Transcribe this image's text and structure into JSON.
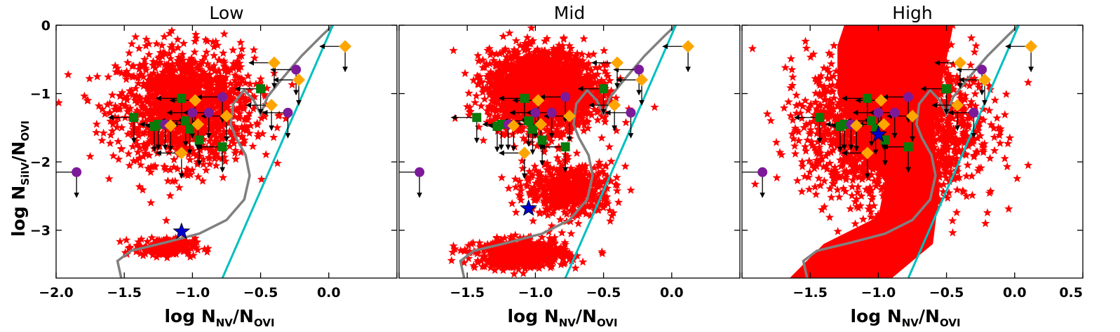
{
  "chart_data": {
    "type": "scatter",
    "xlim": [
      -2.0,
      0.5
    ],
    "ylim": [
      -3.7,
      0.0
    ],
    "x_ticks": [
      -2.0,
      -1.5,
      -1.0,
      -0.5,
      0.0,
      0.5
    ],
    "y_ticks": [
      0,
      -1,
      -2,
      -3
    ],
    "y_tick_labels": [
      "0",
      "−1",
      "−2",
      "−3"
    ],
    "x_tick_labels_by_panel": [
      [
        "−2.0",
        "−1.5",
        "−1.0",
        "−0.5",
        "0.0"
      ],
      [
        "−1.5",
        "−1.0",
        "−0.5",
        "0.0"
      ],
      [
        "−1.5",
        "−1.0",
        "−0.5",
        "0.0",
        "0.5"
      ]
    ],
    "ylabel": {
      "main": "log N",
      "num_sub": "SiIV",
      "sep": "/N",
      "den_sub": "OVI"
    },
    "xlabel": {
      "main": "log N",
      "num_sub": "NV",
      "sep": "/N",
      "den_sub": "OVI"
    },
    "colors": {
      "model_stars": "#ff0000",
      "observed_star": "#0000cc",
      "green_squares": "#0a7a0a",
      "purple_circles": "#7d1a9a",
      "orange_diamonds": "#ffa500",
      "gray_curve": "#808080",
      "cyan_line": "#00bfbf"
    },
    "panels": [
      {
        "title": "Low",
        "model_region": [
          {
            "type": "scatter",
            "center": [
              -1.05,
              -1.2
            ],
            "spread": [
              0.45,
              0.75
            ],
            "count": 1400
          },
          {
            "type": "scatter",
            "center": [
              -1.2,
              -3.25
            ],
            "spread": [
              0.2,
              0.12
            ],
            "count": 220
          }
        ],
        "observed_star": [
          -1.08,
          -3.02
        ]
      },
      {
        "title": "Mid",
        "model_region": [
          {
            "type": "scatter",
            "center": [
              -0.95,
              -0.95
            ],
            "spread": [
              0.35,
              0.5
            ],
            "count": 2600
          },
          {
            "type": "scatter",
            "center": [
              -0.75,
              -2.4
            ],
            "spread": [
              0.3,
              0.35
            ],
            "count": 500
          },
          {
            "type": "scatter",
            "center": [
              -1.1,
              -3.35
            ],
            "spread": [
              0.3,
              0.18
            ],
            "count": 700
          }
        ],
        "observed_star": [
          -1.05,
          -2.68
        ]
      },
      {
        "title": "High",
        "model_region": [
          {
            "type": "band",
            "polygon": [
              [
                -1.25,
                0.0
              ],
              [
                -0.45,
                0.0
              ],
              [
                -0.6,
                -1.5
              ],
              [
                -0.55,
                -2.4
              ],
              [
                -0.6,
                -3.2
              ],
              [
                -0.9,
                -3.7
              ],
              [
                -1.65,
                -3.7
              ],
              [
                -1.4,
                -3.2
              ],
              [
                -1.0,
                -2.8
              ],
              [
                -0.95,
                -2.3
              ],
              [
                -1.15,
                -1.7
              ],
              [
                -1.3,
                -1.0
              ],
              [
                -1.3,
                -0.3
              ]
            ]
          },
          {
            "type": "scatter",
            "center": [
              -0.9,
              -1.5
            ],
            "spread": [
              0.55,
              1.0
            ],
            "count": 2200
          }
        ],
        "observed_star": [
          -1.0,
          -1.6
        ]
      }
    ],
    "gray_curve": [
      [
        -1.52,
        -3.72
      ],
      [
        -1.55,
        -3.45
      ],
      [
        -1.45,
        -3.3
      ],
      [
        -1.2,
        -3.18
      ],
      [
        -0.95,
        -3.05
      ],
      [
        -0.75,
        -2.85
      ],
      [
        -0.62,
        -2.55
      ],
      [
        -0.58,
        -2.2
      ],
      [
        -0.61,
        -1.9
      ],
      [
        -0.68,
        -1.65
      ],
      [
        -0.72,
        -1.45
      ],
      [
        -0.7,
        -1.15
      ],
      [
        -0.62,
        -0.95
      ],
      [
        -0.55,
        -1.1
      ],
      [
        -0.5,
        -1.3
      ],
      [
        -0.45,
        -1.05
      ],
      [
        -0.35,
        -0.8
      ],
      [
        -0.2,
        -0.45
      ],
      [
        -0.05,
        -0.15
      ],
      [
        0.03,
        0.0
      ]
    ],
    "cyan_line": [
      [
        -0.78,
        -3.7
      ],
      [
        0.03,
        0.0
      ]
    ],
    "green_squares": [
      {
        "x": -1.43,
        "y": -1.35,
        "xlim": true,
        "ylim": true
      },
      {
        "x": -1.28,
        "y": -1.48,
        "xlim": false,
        "ylim": true
      },
      {
        "x": -1.25,
        "y": -1.45,
        "xlim": false,
        "ylim": true
      },
      {
        "x": -1.08,
        "y": -1.07,
        "xlim": true,
        "ylim": true
      },
      {
        "x": -1.05,
        "y": -1.4,
        "xlim": true,
        "ylim": true
      },
      {
        "x": -1.02,
        "y": -1.52,
        "xlim": false,
        "ylim": true
      },
      {
        "x": -0.95,
        "y": -1.68,
        "xlim": false,
        "ylim": true
      },
      {
        "x": -0.78,
        "y": -1.78,
        "xlim": true,
        "ylim": true
      },
      {
        "x": -0.5,
        "y": -0.93,
        "xlim": true,
        "ylim": true
      }
    ],
    "purple_circles": [
      {
        "x": -1.85,
        "y": -2.15,
        "xlim": true,
        "ylim": true
      },
      {
        "x": -1.2,
        "y": -1.45,
        "xlim": true,
        "ylim": true
      },
      {
        "x": -1.0,
        "y": -1.28,
        "xlim": true,
        "ylim": true
      },
      {
        "x": -0.88,
        "y": -1.28,
        "xlim": true,
        "ylim": true
      },
      {
        "x": -0.78,
        "y": -1.05,
        "xlim": true,
        "ylim": true
      },
      {
        "x": -0.3,
        "y": -1.28,
        "xlim": true,
        "ylim": true
      },
      {
        "x": -0.24,
        "y": -0.65,
        "xlim": true,
        "ylim": true
      }
    ],
    "orange_diamonds": [
      {
        "x": -1.16,
        "y": -1.47,
        "xlim": true,
        "ylim": true
      },
      {
        "x": -1.08,
        "y": -1.87,
        "xlim": true,
        "ylim": true
      },
      {
        "x": -0.98,
        "y": -1.1,
        "xlim": true,
        "ylim": true
      },
      {
        "x": -0.96,
        "y": -1.45,
        "xlim": true,
        "ylim": true
      },
      {
        "x": -0.75,
        "y": -1.33,
        "xlim": true,
        "ylim": true
      },
      {
        "x": -0.4,
        "y": -0.55,
        "xlim": true,
        "ylim": true
      },
      {
        "x": -0.42,
        "y": -1.17,
        "xlim": true,
        "ylim": true
      },
      {
        "x": -0.22,
        "y": -0.8,
        "xlim": true,
        "ylim": true
      },
      {
        "x": 0.12,
        "y": -0.31,
        "xlim": true,
        "ylim": true
      }
    ]
  }
}
